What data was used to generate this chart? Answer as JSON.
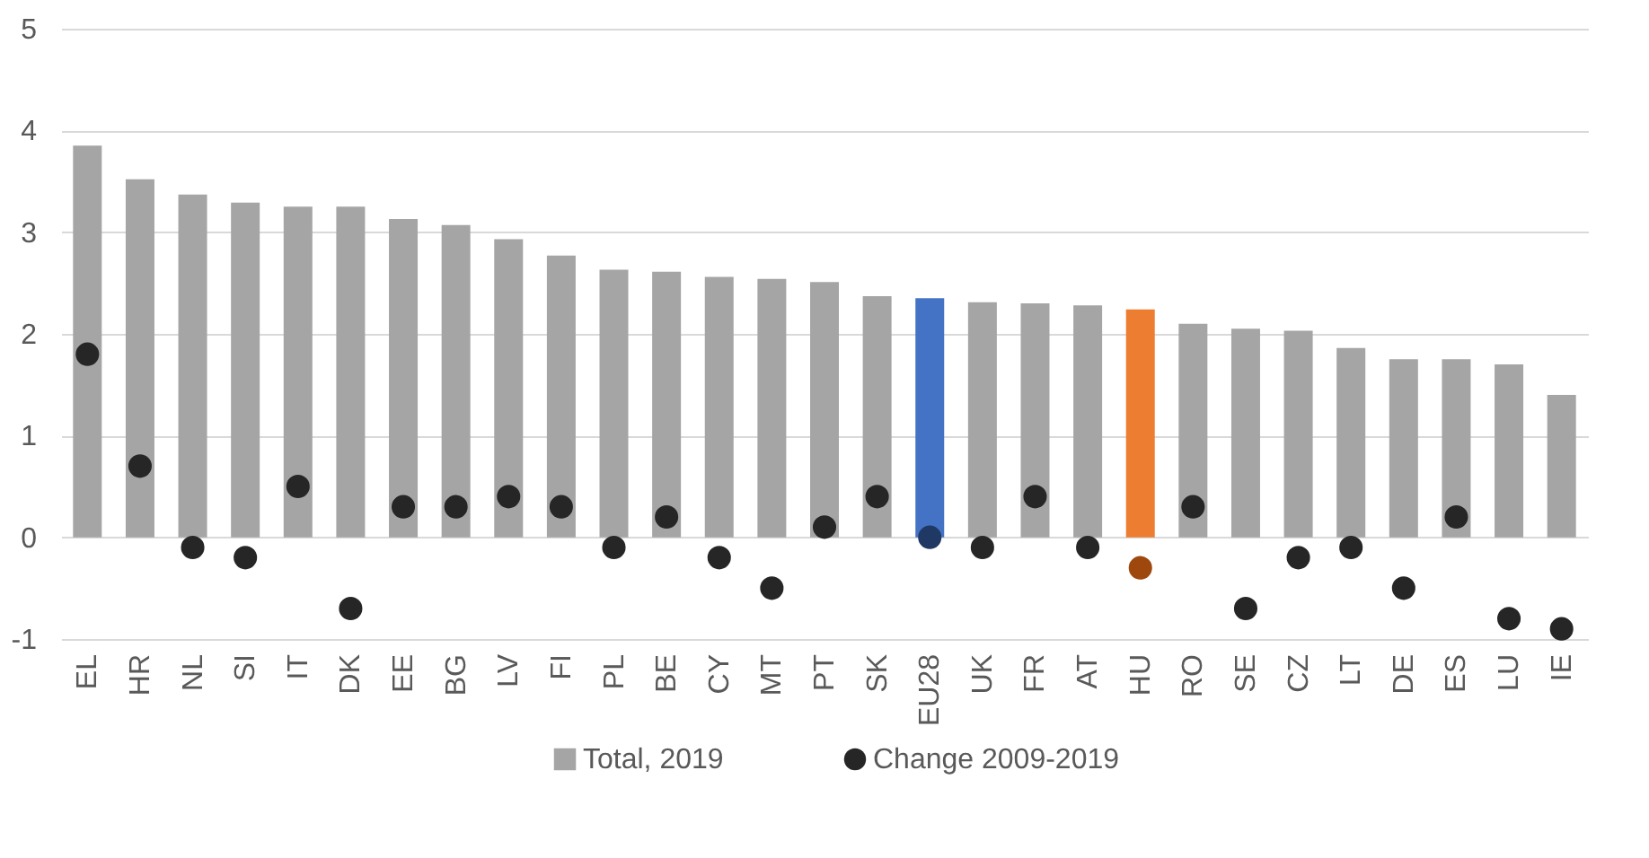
{
  "chart_data": {
    "type": "bar",
    "categories": [
      "EL",
      "HR",
      "NL",
      "SI",
      "IT",
      "DK",
      "EE",
      "BG",
      "LV",
      "FI",
      "PL",
      "BE",
      "CY",
      "MT",
      "PT",
      "SK",
      "EU28",
      "UK",
      "FR",
      "AT",
      "HU",
      "RO",
      "SE",
      "CZ",
      "LT",
      "DE",
      "ES",
      "LU",
      "IE"
    ],
    "series": [
      {
        "name": "Total, 2019",
        "color": "#a5a5a5",
        "colors": [
          "#a5a5a5",
          "#a5a5a5",
          "#a5a5a5",
          "#a5a5a5",
          "#a5a5a5",
          "#a5a5a5",
          "#a5a5a5",
          "#a5a5a5",
          "#a5a5a5",
          "#a5a5a5",
          "#a5a5a5",
          "#a5a5a5",
          "#a5a5a5",
          "#a5a5a5",
          "#a5a5a5",
          "#a5a5a5",
          "#4472c4",
          "#a5a5a5",
          "#a5a5a5",
          "#a5a5a5",
          "#ed7d31",
          "#a5a5a5",
          "#a5a5a5",
          "#a5a5a5",
          "#a5a5a5",
          "#a5a5a5",
          "#a5a5a5",
          "#a5a5a5",
          "#a5a5a5"
        ],
        "values": [
          3.85,
          3.52,
          3.37,
          3.29,
          3.25,
          3.25,
          3.13,
          3.07,
          2.93,
          2.77,
          2.63,
          2.61,
          2.56,
          2.54,
          2.51,
          2.37,
          2.35,
          2.31,
          2.3,
          2.28,
          2.24,
          2.1,
          2.05,
          2.03,
          1.86,
          1.75,
          1.75,
          1.7,
          1.4
        ]
      },
      {
        "name": "Change 2009-2019",
        "type": "scatter",
        "marker": "circle",
        "color": "#262626",
        "colors": [
          "#262626",
          "#262626",
          "#262626",
          "#262626",
          "#262626",
          "#262626",
          "#262626",
          "#262626",
          "#262626",
          "#262626",
          "#262626",
          "#262626",
          "#262626",
          "#262626",
          "#262626",
          "#262626",
          "#1f3864",
          "#262626",
          "#262626",
          "#262626",
          "#9e480e",
          "#262626",
          "#262626",
          "#262626",
          "#262626",
          "#262626",
          "#262626",
          "#262626",
          "#262626"
        ],
        "values": [
          1.8,
          0.7,
          -0.1,
          -0.2,
          0.5,
          -0.7,
          0.3,
          0.3,
          0.4,
          0.3,
          -0.1,
          0.2,
          -0.2,
          -0.5,
          0.1,
          0.4,
          0.0,
          -0.1,
          0.4,
          -0.1,
          -0.3,
          0.3,
          -0.7,
          -0.2,
          -0.1,
          -0.5,
          0.2,
          -0.8,
          -0.9
        ]
      }
    ],
    "ylim": [
      -1,
      5
    ],
    "yticks": [
      -1,
      0,
      1,
      2,
      3,
      4,
      5
    ],
    "grid": "y",
    "legend": "bottom"
  }
}
